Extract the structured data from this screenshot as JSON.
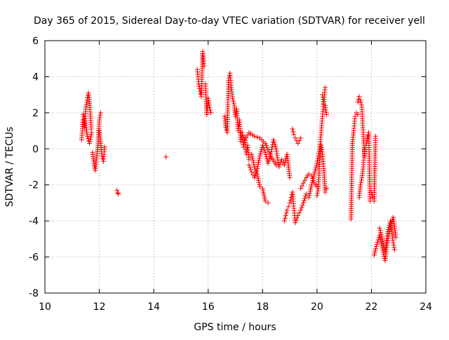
{
  "chart_data": {
    "type": "scatter",
    "title": "Day 365 of 2015, Sidereal Day-to-day VTEC variation (SDTVAR) for receiver yell",
    "xlabel": "GPS time / hours",
    "ylabel": "SDTVAR / TECUs",
    "xlim": [
      10,
      24
    ],
    "ylim": [
      -8,
      6
    ],
    "xticks": [
      10,
      12,
      14,
      16,
      18,
      20,
      22,
      24
    ],
    "yticks": [
      -8,
      -6,
      -4,
      -2,
      0,
      2,
      4,
      6
    ],
    "grid": true,
    "marker": "+",
    "color": "#ff0000",
    "series": [
      {
        "name": "SDTVAR",
        "segments": [
          {
            "x": [
              11.35,
              11.4,
              11.45,
              11.5,
              11.55,
              11.6,
              11.65,
              11.7
            ],
            "y": [
              0.5,
              1.6,
              1.2,
              2.2,
              2.7,
              3.1,
              2.4,
              1.1
            ]
          },
          {
            "x": [
              11.4,
              11.48,
              11.56,
              11.64,
              11.72
            ],
            "y": [
              1.9,
              1.4,
              0.7,
              0.3,
              0.9
            ]
          },
          {
            "x": [
              11.75,
              11.8,
              11.85,
              11.9,
              11.95,
              12.0,
              12.05
            ],
            "y": [
              -0.2,
              -0.8,
              -1.2,
              -0.5,
              0.2,
              1.6,
              2.0
            ]
          },
          {
            "x": [
              12.0,
              12.05,
              12.1,
              12.15,
              12.2
            ],
            "y": [
              1.0,
              0.3,
              -0.4,
              -0.7,
              0.1
            ]
          },
          {
            "x": [
              12.65,
              12.68,
              12.7
            ],
            "y": [
              -2.3,
              -2.45,
              -2.5
            ]
          },
          {
            "x": [
              14.45
            ],
            "y": [
              -0.45
            ]
          },
          {
            "x": [
              15.6,
              15.65,
              15.7,
              15.75,
              15.8,
              15.85
            ],
            "y": [
              4.4,
              3.6,
              3.2,
              2.9,
              5.4,
              4.6
            ]
          },
          {
            "x": [
              15.9,
              15.95,
              16.0,
              16.05,
              16.1
            ],
            "y": [
              3.6,
              1.9,
              2.8,
              2.3,
              2.0
            ]
          },
          {
            "x": [
              16.6,
              16.65,
              16.7,
              16.75,
              16.8,
              16.85,
              16.9,
              16.95,
              17.0,
              17.05,
              17.1,
              17.15,
              17.2,
              17.25,
              17.3,
              17.35,
              17.4,
              17.45,
              17.5
            ],
            "y": [
              1.8,
              1.2,
              0.9,
              3.8,
              4.2,
              3.4,
              2.8,
              2.5,
              1.8,
              2.2,
              1.0,
              1.6,
              0.4,
              0.9,
              0.1,
              0.6,
              -0.3,
              0.2,
              -0.6
            ]
          },
          {
            "x": [
              17.5,
              17.6,
              17.7,
              17.8,
              17.9,
              18.0,
              18.1,
              18.2,
              18.3,
              18.4,
              18.5,
              18.6,
              18.7,
              18.8,
              18.9,
              19.0
            ],
            "y": [
              -0.9,
              -1.3,
              -1.6,
              -1.1,
              -0.4,
              0.2,
              -0.2,
              -0.8,
              -0.3,
              0.5,
              0.0,
              -1.0,
              -0.6,
              -0.9,
              -0.3,
              -1.6
            ]
          },
          {
            "x": [
              17.6,
              17.7,
              17.8,
              17.9,
              18.0,
              18.1,
              18.2
            ],
            "y": [
              -0.3,
              -1.0,
              -1.4,
              -2.1,
              -2.2,
              -2.9,
              -3.0
            ]
          },
          {
            "x": [
              17.2,
              17.35,
              17.5,
              17.7,
              17.9,
              18.1,
              18.3,
              18.5
            ],
            "y": [
              0.9,
              0.5,
              0.9,
              0.7,
              0.6,
              0.3,
              -0.4,
              -0.9
            ]
          },
          {
            "x": [
              18.8,
              18.85,
              18.9,
              18.95,
              19.0,
              19.05,
              19.1,
              19.15,
              19.2,
              19.3,
              19.4,
              19.5,
              19.6
            ],
            "y": [
              -4.0,
              -3.7,
              -3.4,
              -3.2,
              -3.0,
              -2.7,
              -2.4,
              -3.3,
              -4.1,
              -3.7,
              -3.4,
              -3.0,
              -2.5
            ]
          },
          {
            "x": [
              19.1,
              19.15,
              19.2,
              19.3,
              19.4
            ],
            "y": [
              1.1,
              0.8,
              0.6,
              0.3,
              0.6
            ]
          },
          {
            "x": [
              19.4,
              19.5,
              19.6,
              19.7,
              19.8,
              19.9,
              20.0
            ],
            "y": [
              -2.2,
              -1.9,
              -1.6,
              -1.4,
              -1.5,
              -1.9,
              -2.1
            ]
          },
          {
            "x": [
              19.7,
              19.8,
              19.9,
              20.0,
              20.1,
              20.15,
              20.2,
              20.25,
              20.3
            ],
            "y": [
              -2.7,
              -2.0,
              -1.4,
              -0.8,
              0.0,
              0.9,
              1.8,
              2.6,
              3.4
            ]
          },
          {
            "x": [
              20.0,
              20.05,
              20.1,
              20.15,
              20.2,
              20.25,
              20.3,
              20.35
            ],
            "y": [
              -2.6,
              -2.2,
              -0.5,
              0.2,
              -0.3,
              -1.1,
              -2.4,
              -2.2
            ]
          },
          {
            "x": [
              20.2,
              20.25,
              20.3,
              20.35
            ],
            "y": [
              3.0,
              2.5,
              2.4,
              1.9
            ]
          },
          {
            "x": [
              21.25,
              21.3,
              21.35,
              21.4,
              21.45,
              21.5
            ],
            "y": [
              -3.9,
              0.3,
              1.0,
              1.8,
              2.0,
              1.9
            ]
          },
          {
            "x": [
              21.5,
              21.55,
              21.6,
              21.65,
              21.7,
              21.75
            ],
            "y": [
              2.6,
              2.9,
              2.7,
              2.3,
              0.8,
              -0.4
            ]
          },
          {
            "x": [
              21.55,
              21.6,
              21.65,
              21.7,
              21.75,
              21.8,
              21.85,
              21.9,
              21.95
            ],
            "y": [
              -2.7,
              -2.0,
              -1.6,
              -1.0,
              0.0,
              0.2,
              0.6,
              0.9,
              -2.9
            ]
          },
          {
            "x": [
              22.0,
              22.05,
              22.1,
              22.15
            ],
            "y": [
              -2.4,
              -2.7,
              -2.9,
              0.7
            ]
          },
          {
            "x": [
              22.1,
              22.2,
              22.3,
              22.4,
              22.5,
              22.6,
              22.7,
              22.8,
              22.9
            ],
            "y": [
              -5.9,
              -5.3,
              -4.8,
              -5.5,
              -6.2,
              -5.1,
              -4.3,
              -3.8,
              -4.9
            ]
          },
          {
            "x": [
              22.3,
              22.4,
              22.5,
              22.6,
              22.7,
              22.8,
              22.85
            ],
            "y": [
              -4.4,
              -5.0,
              -5.7,
              -4.6,
              -4.0,
              -5.2,
              -5.6
            ]
          }
        ]
      }
    ]
  }
}
